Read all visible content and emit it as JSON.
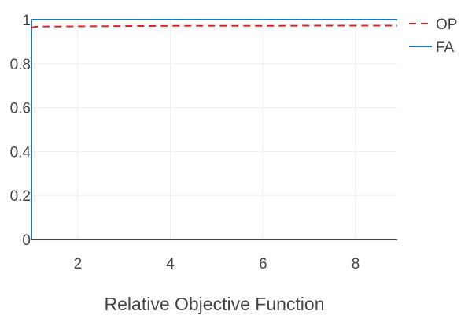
{
  "chart_data": {
    "type": "line",
    "title": "",
    "xlabel": "Relative Objective Function",
    "ylabel": "",
    "xlim": [
      1,
      8.9
    ],
    "ylim": [
      0,
      1
    ],
    "xticks": [
      2,
      4,
      6,
      8
    ],
    "xtick_labels": [
      "2",
      "4",
      "6",
      "8"
    ],
    "yticks": [
      0,
      0.2,
      0.4,
      0.6,
      0.8,
      1
    ],
    "ytick_labels": [
      "0",
      "0.2",
      "0.4",
      "0.6",
      "0.8",
      "1"
    ],
    "grid": true,
    "legend_position": "top-right",
    "series": [
      {
        "name": "OP",
        "color": "#d62728",
        "dash": "dashed",
        "x": [
          1,
          1.02,
          1.1,
          1.3,
          1.6,
          2,
          3,
          4,
          5,
          6,
          7,
          8,
          8.9
        ],
        "y": [
          0.96,
          0.965,
          0.968,
          0.969,
          0.969,
          0.97,
          0.971,
          0.972,
          0.972,
          0.972,
          0.973,
          0.973,
          0.973
        ]
      },
      {
        "name": "FA",
        "color": "#1f77b4",
        "dash": "solid",
        "x": [
          1,
          1,
          8.9
        ],
        "y": [
          0,
          1,
          1
        ]
      }
    ]
  }
}
